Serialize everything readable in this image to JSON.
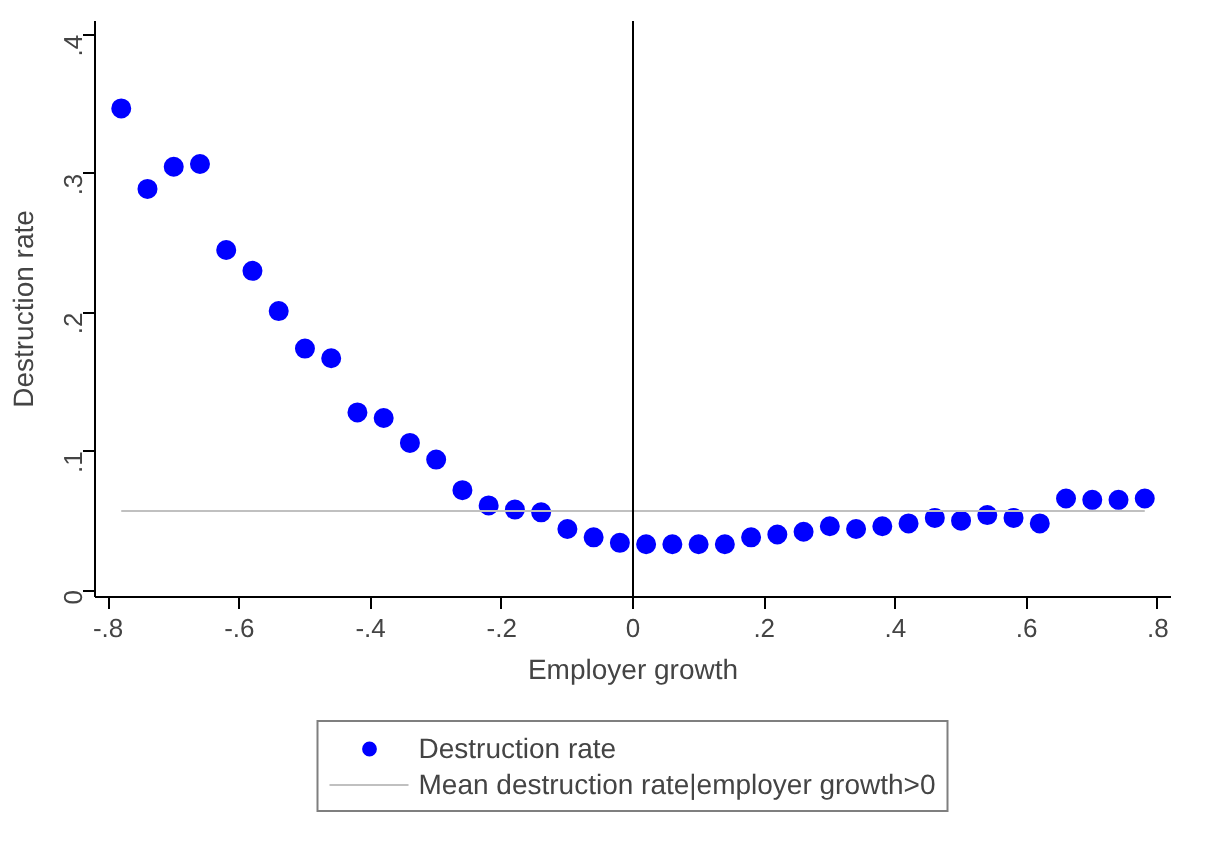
{
  "chart_data": {
    "type": "scatter",
    "xlabel": "Employer growth",
    "ylabel": "Destruction rate",
    "x": [
      -0.78,
      -0.74,
      -0.7,
      -0.66,
      -0.62,
      -0.58,
      -0.54,
      -0.5,
      -0.46,
      -0.42,
      -0.38,
      -0.34,
      -0.3,
      -0.26,
      -0.22,
      -0.18,
      -0.14,
      -0.1,
      -0.06,
      -0.02,
      0.02,
      0.06,
      0.1,
      0.14,
      0.18,
      0.22,
      0.26,
      0.3,
      0.34,
      0.38,
      0.42,
      0.46,
      0.5,
      0.54,
      0.58,
      0.62,
      0.66,
      0.7,
      0.74,
      0.78
    ],
    "series": [
      {
        "name": "Destruction rate",
        "color": "#0000ff",
        "values": [
          0.347,
          0.289,
          0.305,
          0.307,
          0.245,
          0.23,
          0.201,
          0.174,
          0.167,
          0.128,
          0.124,
          0.106,
          0.094,
          0.072,
          0.061,
          0.058,
          0.056,
          0.044,
          0.038,
          0.034,
          0.033,
          0.033,
          0.033,
          0.033,
          0.038,
          0.04,
          0.042,
          0.046,
          0.044,
          0.046,
          0.048,
          0.052,
          0.05,
          0.054,
          0.052,
          0.048,
          0.066,
          0.065,
          0.065,
          0.066
        ]
      },
      {
        "name": "Mean destruction rate|employer growth>0",
        "type": "line",
        "marker": "none",
        "color": "#c0c0c0",
        "x": [
          -0.78,
          0.78
        ],
        "values": [
          0.057,
          0.057
        ]
      }
    ],
    "xlim": [
      -0.82,
      0.82
    ],
    "ylim": [
      -0.005,
      0.41
    ],
    "xticks": [
      {
        "value": -0.8,
        "label": "-.8"
      },
      {
        "value": -0.6,
        "label": "-.6"
      },
      {
        "value": -0.4,
        "label": "-.4"
      },
      {
        "value": -0.2,
        "label": "-.2"
      },
      0,
      {
        "value": 0.2,
        "label": ".2"
      },
      {
        "value": 0.4,
        "label": ".4"
      },
      {
        "value": 0.6,
        "label": ".6"
      },
      {
        "value": 0.8,
        "label": ".8"
      }
    ],
    "yticks": [
      0,
      {
        "value": 0.1,
        "label": ".1"
      },
      {
        "value": 0.2,
        "label": ".2"
      },
      {
        "value": 0.3,
        "label": ".3"
      },
      {
        "value": 0.4,
        "label": ".4"
      }
    ],
    "ref_lines": [
      {
        "axis": "x",
        "value": 0,
        "color": "#000000"
      }
    ],
    "legend": "bottom",
    "marker": "circle",
    "grid": false
  }
}
